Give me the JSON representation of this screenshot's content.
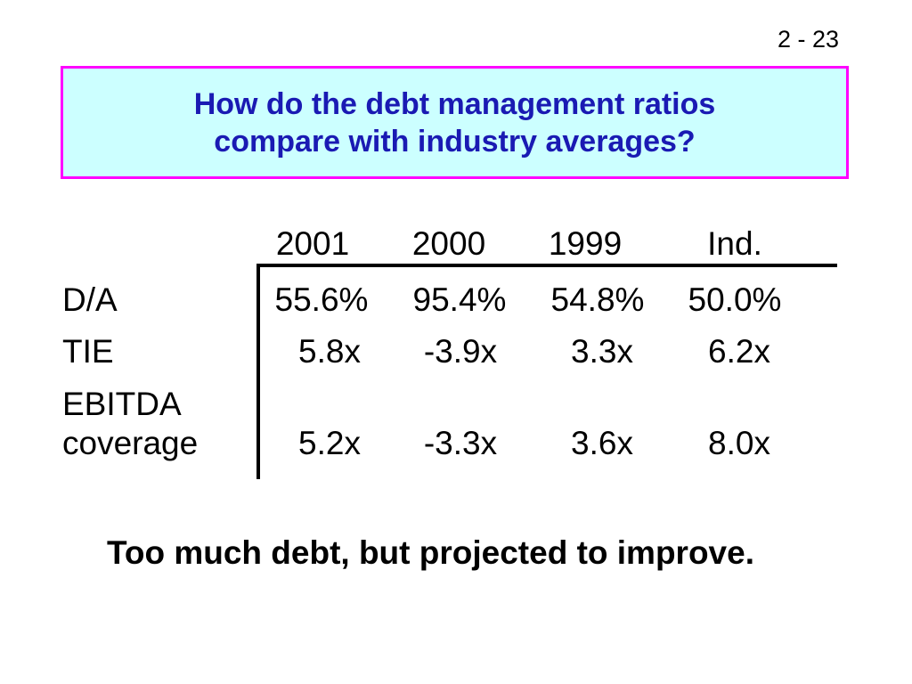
{
  "slide": {
    "number": "2 - 23",
    "title_lines": [
      "How do the debt management ratios",
      "compare with industry averages?"
    ],
    "colors": {
      "title_text": "#1a1ab3",
      "title_background": "#ccffff",
      "title_border": "#ff00ff"
    }
  },
  "table": {
    "columns": [
      "2001",
      "2000",
      "1999",
      "Ind."
    ],
    "rows": [
      {
        "label": "D/A",
        "values": [
          "55.6%",
          "95.4%",
          "54.8%",
          "50.0%"
        ]
      },
      {
        "label": "TIE",
        "values": [
          "5.8x",
          "-3.9x",
          "3.3x",
          "6.2x"
        ]
      },
      {
        "label_lines": [
          "EBITDA",
          "coverage"
        ],
        "values": [
          "5.2x",
          "-3.3x",
          "3.6x",
          "8.0x"
        ]
      }
    ]
  },
  "conclusion": "Too much debt, but projected to improve."
}
